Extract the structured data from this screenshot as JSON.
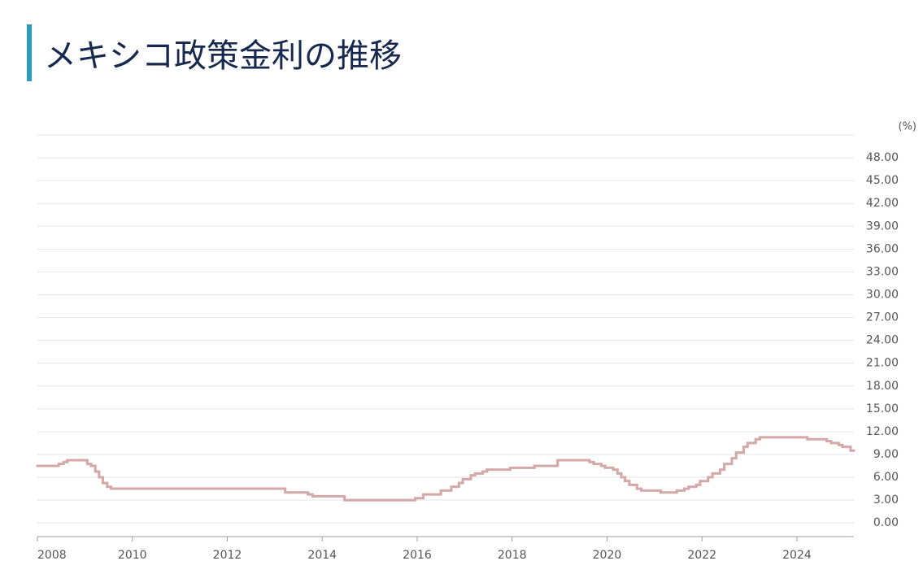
{
  "chart_data": {
    "type": "line",
    "title": "メキシコ政策金利の推移",
    "ylabel": "(%)",
    "x": [
      2008.0,
      2008.45,
      2008.55,
      2008.63,
      2009.05,
      2009.13,
      2009.22,
      2009.3,
      2009.38,
      2009.47,
      2009.55,
      2013.22,
      2013.7,
      2013.8,
      2014.47,
      2015.96,
      2016.13,
      2016.5,
      2016.72,
      2016.88,
      2016.96,
      2017.13,
      2017.22,
      2017.38,
      2017.47,
      2017.96,
      2018.47,
      2018.96,
      2019.63,
      2019.72,
      2019.88,
      2019.96,
      2020.13,
      2020.22,
      2020.3,
      2020.38,
      2020.47,
      2020.63,
      2020.72,
      2021.13,
      2021.47,
      2021.63,
      2021.72,
      2021.88,
      2021.96,
      2022.13,
      2022.22,
      2022.38,
      2022.47,
      2022.63,
      2022.72,
      2022.88,
      2022.96,
      2023.13,
      2023.22,
      2024.22,
      2024.63,
      2024.72,
      2024.88,
      2024.96,
      2025.13
    ],
    "series": [
      {
        "color": "#d3a8a7",
        "values": [
          7.5,
          7.75,
          8.0,
          8.25,
          7.75,
          7.5,
          6.75,
          6.0,
          5.25,
          4.75,
          4.5,
          4.0,
          3.75,
          3.5,
          3.0,
          3.25,
          3.75,
          4.25,
          4.75,
          5.25,
          5.75,
          6.25,
          6.5,
          6.75,
          7.0,
          7.25,
          7.5,
          8.25,
          8.0,
          7.75,
          7.5,
          7.25,
          7.0,
          6.5,
          6.0,
          5.5,
          5.0,
          4.5,
          4.25,
          4.0,
          4.25,
          4.5,
          4.75,
          5.0,
          5.5,
          6.0,
          6.5,
          7.0,
          7.75,
          8.5,
          9.25,
          10.0,
          10.5,
          11.0,
          11.25,
          11.0,
          10.75,
          10.5,
          10.25,
          10.0,
          9.5
        ]
      }
    ],
    "step": true,
    "xlim": [
      2008,
      2025.2
    ],
    "xticks": [
      2008,
      2010,
      2012,
      2014,
      2016,
      2018,
      2020,
      2022,
      2024
    ],
    "ylim": [
      -1.8,
      51
    ],
    "yticks": [
      {
        "value": 0,
        "label": "0.00"
      },
      {
        "value": 3,
        "label": "3.00"
      },
      {
        "value": 6,
        "label": "6.00"
      },
      {
        "value": 9,
        "label": "9.00"
      },
      {
        "value": 12,
        "label": "12.00"
      },
      {
        "value": 15,
        "label": "15.00"
      },
      {
        "value": 18,
        "label": "18.00"
      },
      {
        "value": 21,
        "label": "21.00"
      },
      {
        "value": 24,
        "label": "24.00"
      },
      {
        "value": 27,
        "label": "27.00"
      },
      {
        "value": 30,
        "label": "30.00"
      },
      {
        "value": 33,
        "label": "33.00"
      },
      {
        "value": 36,
        "label": "36.00"
      },
      {
        "value": 39,
        "label": "39.00"
      },
      {
        "value": 42,
        "label": "42.00"
      },
      {
        "value": 45,
        "label": "45.00"
      },
      {
        "value": 48,
        "label": "48.00"
      }
    ],
    "grid": true
  }
}
